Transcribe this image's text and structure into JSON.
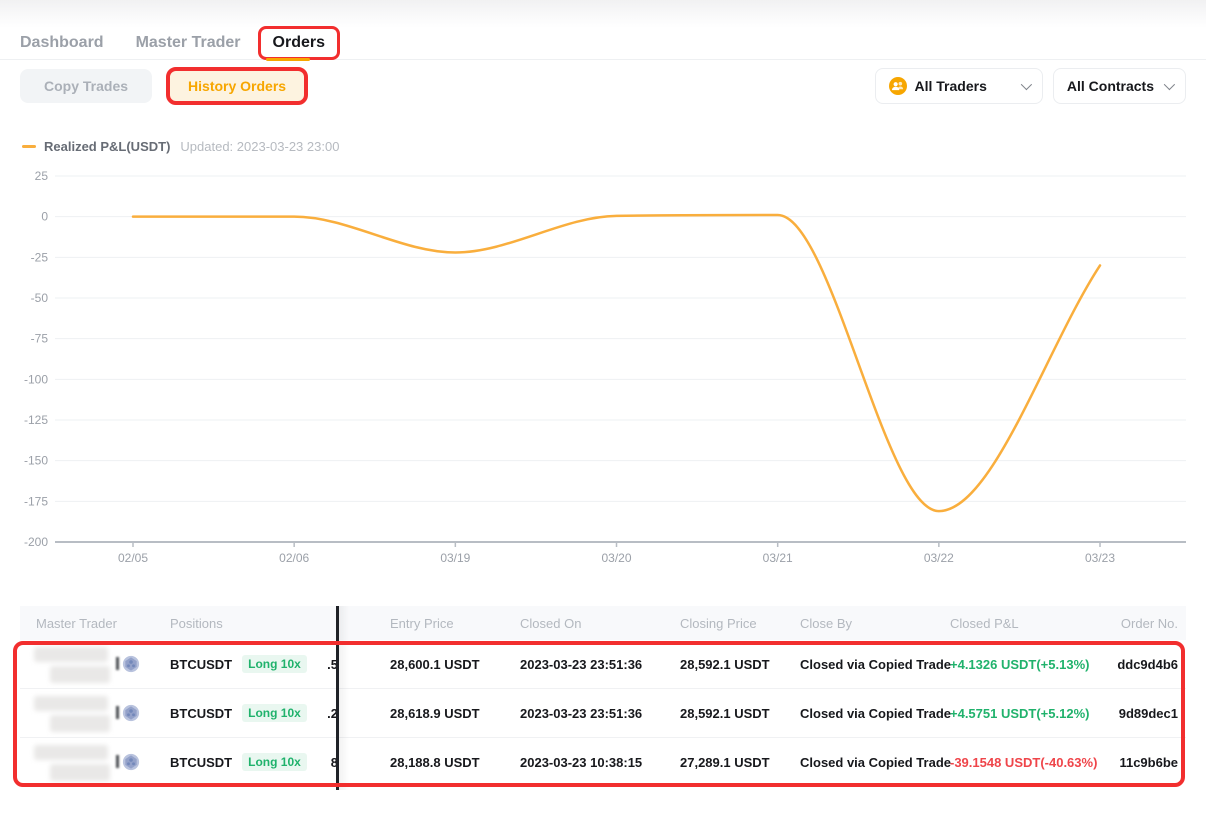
{
  "tabs": {
    "items": [
      {
        "label": "Dashboard",
        "active": false
      },
      {
        "label": "Master Trader",
        "active": false
      },
      {
        "label": "Orders",
        "active": true,
        "annotated": true
      }
    ]
  },
  "subnav": {
    "copy_trades_label": "Copy Trades",
    "history_orders_label": "History Orders",
    "history_orders_annotated": true
  },
  "filters": {
    "all_traders_label": "All Traders",
    "all_contracts_label": "All Contracts"
  },
  "legend": {
    "series_label": "Realized P&L(USDT)",
    "updated_label": "Updated: 2023-03-23 23:00"
  },
  "chart_data": {
    "type": "line",
    "title": "Realized P&L(USDT)",
    "x": [
      "02/05",
      "02/06",
      "03/19",
      "03/20",
      "03/21",
      "03/22",
      "03/23"
    ],
    "values": [
      0,
      0,
      -22,
      0.5,
      1,
      -181,
      -30
    ],
    "ylim": [
      -200,
      25
    ],
    "yticks": [
      25,
      0,
      -25,
      -50,
      -75,
      -100,
      -125,
      -150,
      -175,
      -200
    ],
    "grid": true,
    "smooth": true,
    "legend_position": "top-left",
    "line_color": "#F9AE3D"
  },
  "table": {
    "columns": [
      "Master Trader",
      "Positions",
      "",
      "Entry Price",
      "Closed On",
      "Closing Price",
      "Close By",
      "Closed P&L",
      "Order No."
    ],
    "rows": [
      {
        "symbol": "BTCUSDT",
        "side": "Long 10x",
        "qty_fragment": ".5",
        "entry_price": "28,600.1 USDT",
        "closed_on": "2023-03-23 23:51:36",
        "closing_price": "28,592.1 USDT",
        "close_by": "Closed via Copied Trade",
        "closed_pl": "+4.1326 USDT(+5.13%)",
        "pl_positive": true,
        "order_no": "ddc9d4b6"
      },
      {
        "symbol": "BTCUSDT",
        "side": "Long 10x",
        "qty_fragment": ".2",
        "entry_price": "28,618.9 USDT",
        "closed_on": "2023-03-23 23:51:36",
        "closing_price": "28,592.1 USDT",
        "close_by": "Closed via Copied Trade",
        "closed_pl": "+4.5751 USDT(+5.12%)",
        "pl_positive": true,
        "order_no": "9d89dec1"
      },
      {
        "symbol": "BTCUSDT",
        "side": "Long 10x",
        "qty_fragment": "8",
        "entry_price": "28,188.8 USDT",
        "closed_on": "2023-03-23 10:38:15",
        "closing_price": "27,289.1 USDT",
        "close_by": "Closed via Copied Trade",
        "closed_pl": "-39.1548 USDT(-40.63%)",
        "pl_positive": false,
        "order_no": "11c9b6be"
      }
    ]
  },
  "colors": {
    "accent_orange": "#F7A600",
    "chart_line": "#F9AE3D",
    "positive_green": "#20B26C",
    "negative_red": "#EF454A",
    "annotation_red": "#F22E2E",
    "muted_text": "#9BA0A8",
    "dark_text": "#17181C",
    "gridline": "#EEF0F3",
    "axis": "#B8BDC4"
  }
}
